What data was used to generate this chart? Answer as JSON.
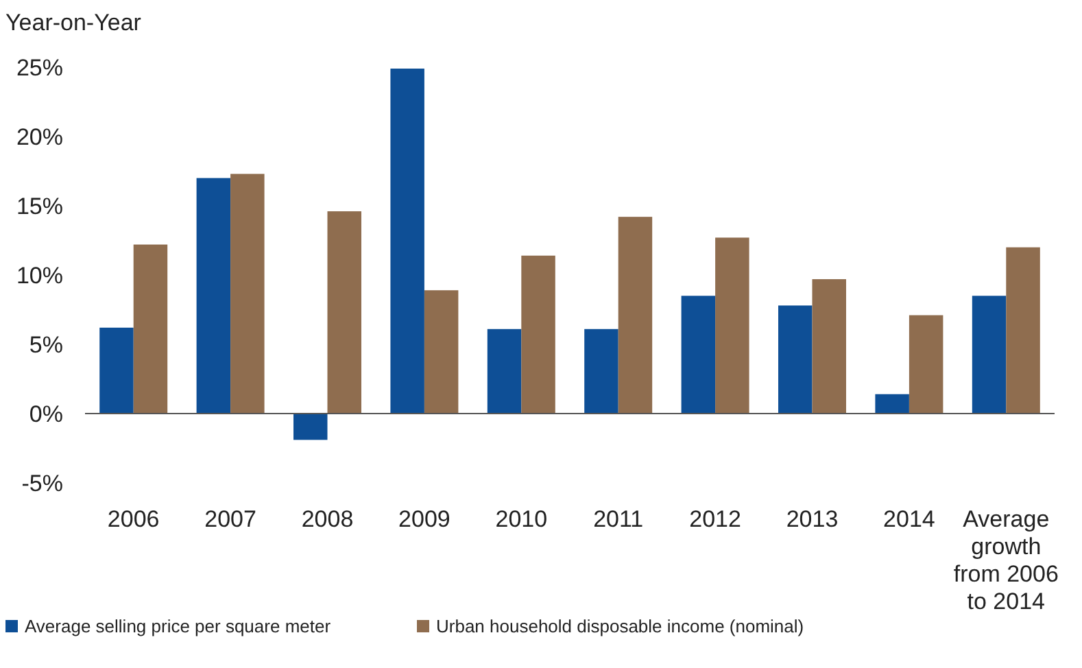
{
  "chart_data": {
    "type": "bar",
    "ylabel": "Year-on-Year",
    "categories": [
      "2006",
      "2007",
      "2008",
      "2009",
      "2010",
      "2011",
      "2012",
      "2013",
      "2014",
      "Average growth from 2006 to 2014"
    ],
    "series": [
      {
        "name": "Average selling price per square meter",
        "color": "#0e4f96",
        "values": [
          6.2,
          17.0,
          -1.9,
          24.9,
          6.1,
          6.1,
          8.5,
          7.8,
          1.4,
          8.5
        ]
      },
      {
        "name": "Urban household disposable income (nominal)",
        "color": "#8f6d4f",
        "values": [
          12.2,
          17.3,
          14.6,
          8.9,
          11.4,
          14.2,
          12.7,
          9.7,
          7.1,
          12.0
        ]
      }
    ],
    "ylim": [
      -5,
      25
    ],
    "yticks": [
      {
        "value": -5,
        "label": "-5%"
      },
      {
        "value": 0,
        "label": "0%"
      },
      {
        "value": 5,
        "label": "5%"
      },
      {
        "value": 10,
        "label": "10%"
      },
      {
        "value": 15,
        "label": "15%"
      },
      {
        "value": 20,
        "label": "20%"
      },
      {
        "value": 25,
        "label": "25%"
      }
    ],
    "legend": "bottom"
  }
}
